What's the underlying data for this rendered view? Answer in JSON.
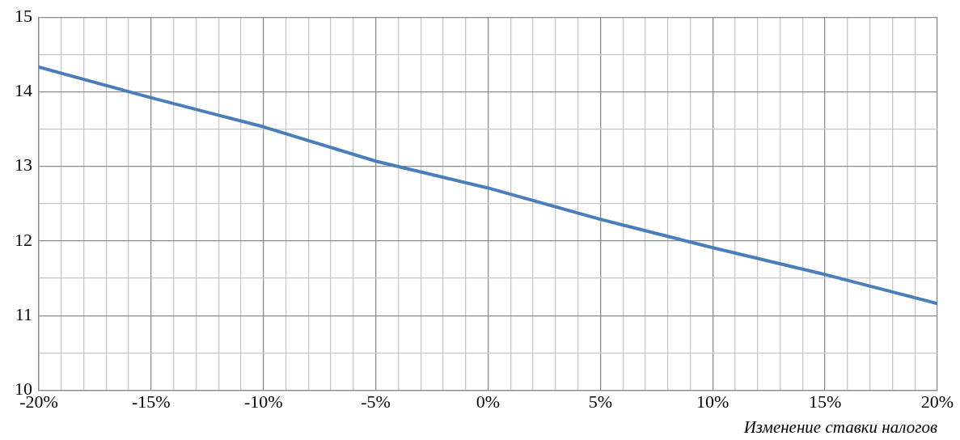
{
  "chart_data": {
    "type": "line",
    "xlabel": "Изменение ставки налогов",
    "x": [
      -20,
      -15,
      -10,
      -5,
      0,
      5,
      10,
      15,
      20
    ],
    "series": [
      {
        "color": "#4a7ebb",
        "values": [
          14.33,
          13.92,
          13.53,
          13.07,
          12.71,
          12.29,
          11.91,
          11.55,
          11.16
        ]
      }
    ],
    "xlim": [
      -20,
      20
    ],
    "xticks": [
      {
        "value": -20,
        "label": "-20%"
      },
      {
        "value": -19,
        "label": null
      },
      {
        "value": -18,
        "label": null
      },
      {
        "value": -17,
        "label": null
      },
      {
        "value": -16,
        "label": null
      },
      {
        "value": -15,
        "label": "-15%"
      },
      {
        "value": -14,
        "label": null
      },
      {
        "value": -13,
        "label": null
      },
      {
        "value": -12,
        "label": null
      },
      {
        "value": -11,
        "label": null
      },
      {
        "value": -10,
        "label": "-10%"
      },
      {
        "value": -9,
        "label": null
      },
      {
        "value": -8,
        "label": null
      },
      {
        "value": -7,
        "label": null
      },
      {
        "value": -6,
        "label": null
      },
      {
        "value": -5,
        "label": "-5%"
      },
      {
        "value": -4,
        "label": null
      },
      {
        "value": -3,
        "label": null
      },
      {
        "value": -2,
        "label": null
      },
      {
        "value": -1,
        "label": null
      },
      {
        "value": 0,
        "label": "0%"
      },
      {
        "value": 1,
        "label": null
      },
      {
        "value": 2,
        "label": null
      },
      {
        "value": 3,
        "label": null
      },
      {
        "value": 4,
        "label": null
      },
      {
        "value": 5,
        "label": "5%"
      },
      {
        "value": 6,
        "label": null
      },
      {
        "value": 7,
        "label": null
      },
      {
        "value": 8,
        "label": null
      },
      {
        "value": 9,
        "label": null
      },
      {
        "value": 10,
        "label": "10%"
      },
      {
        "value": 11,
        "label": null
      },
      {
        "value": 12,
        "label": null
      },
      {
        "value": 13,
        "label": null
      },
      {
        "value": 14,
        "label": null
      },
      {
        "value": 15,
        "label": "15%"
      },
      {
        "value": 16,
        "label": null
      },
      {
        "value": 17,
        "label": null
      },
      {
        "value": 18,
        "label": null
      },
      {
        "value": 19,
        "label": null
      },
      {
        "value": 20,
        "label": "20%"
      }
    ],
    "ylim": [
      10,
      15
    ],
    "yticks": [
      10,
      {
        "value": 10.5,
        "label": null
      },
      11,
      {
        "value": 11.5,
        "label": null
      },
      12,
      {
        "value": 12.5,
        "label": null
      },
      13,
      {
        "value": 13.5,
        "label": null
      },
      14,
      {
        "value": 14.5,
        "label": null
      },
      15
    ],
    "grid": true,
    "marker": "none",
    "line_style": "solid"
  }
}
